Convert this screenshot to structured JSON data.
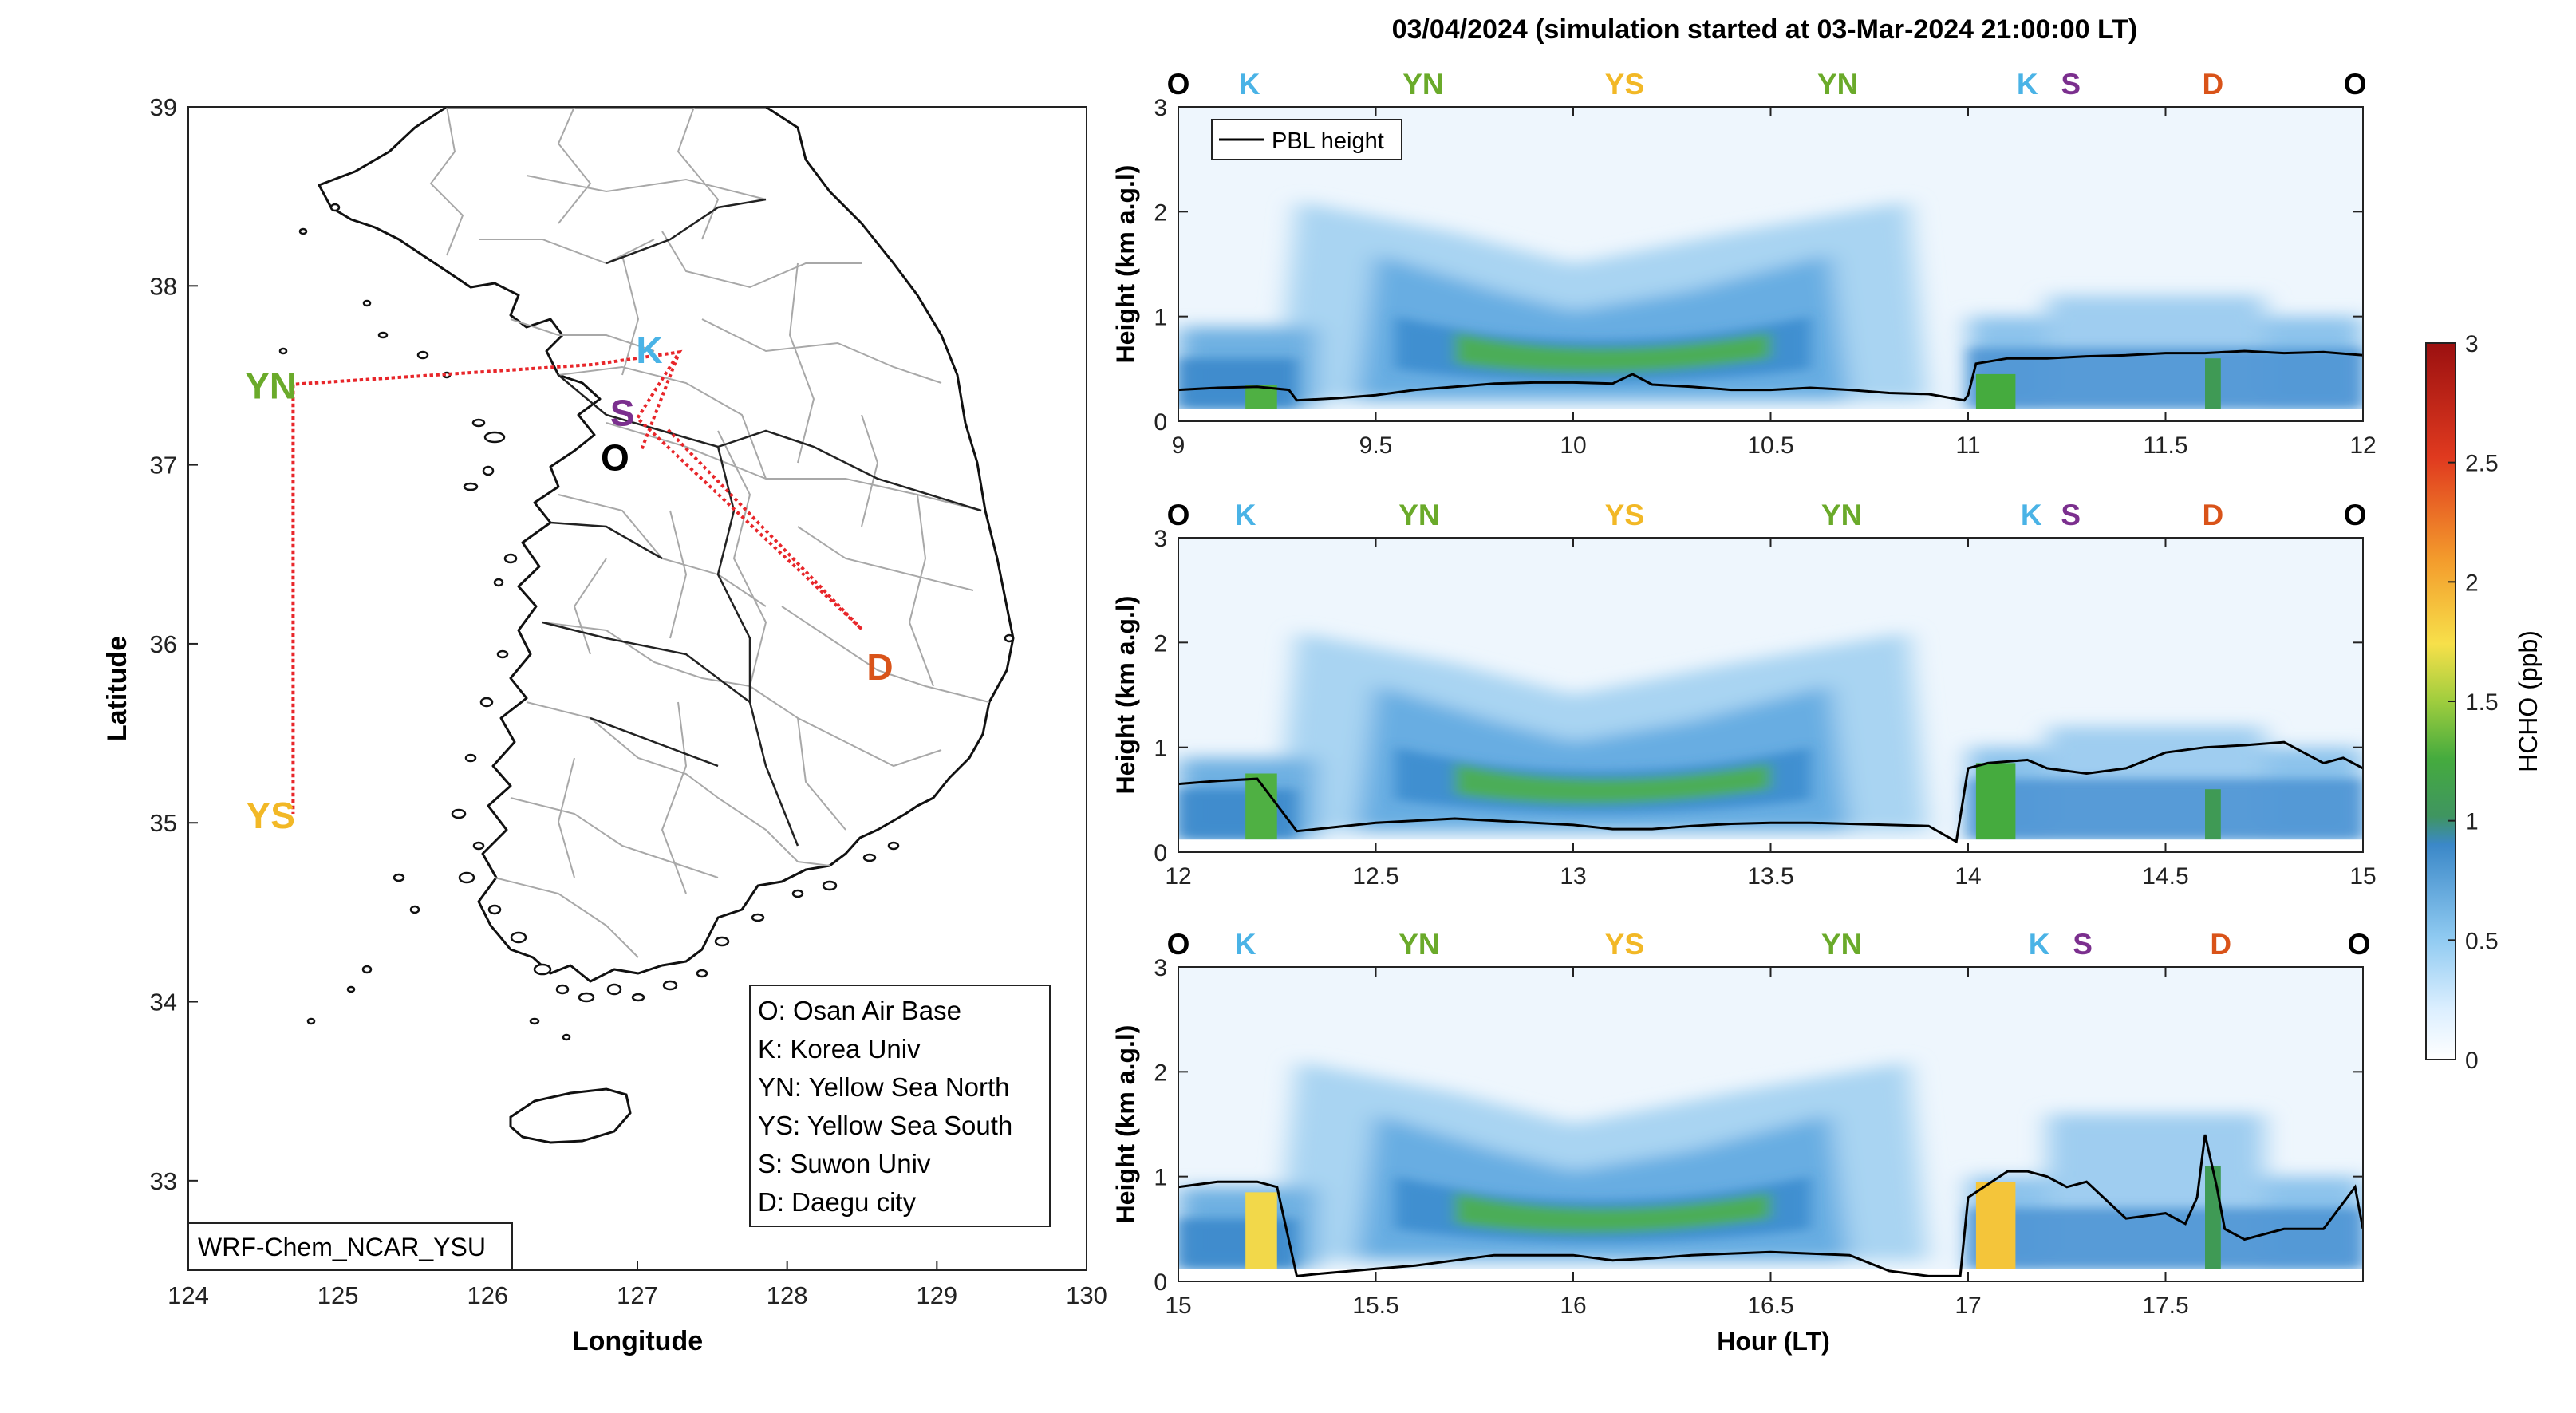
{
  "figure": {
    "title": "03/04/2024 (simulation started at 03-Mar-2024 21:00:00 LT)"
  },
  "map": {
    "xlabel": "Longitude",
    "ylabel": "Latitude",
    "xlim": [
      124,
      130
    ],
    "ylim": [
      32.5,
      39
    ],
    "xticks": [
      124,
      125,
      126,
      127,
      128,
      129,
      130
    ],
    "yticks": [
      33,
      34,
      35,
      36,
      37,
      38,
      39
    ],
    "model_label": "WRF-Chem_NCAR_YSU",
    "flight_track_color": "#e8262a",
    "track": [
      [
        127.03,
        37.09
      ],
      [
        127.28,
        37.63
      ],
      [
        126.7,
        37.56
      ],
      [
        124.7,
        37.45
      ],
      [
        124.7,
        35.05
      ],
      [
        124.7,
        37.45
      ],
      [
        126.7,
        37.56
      ],
      [
        127.28,
        37.63
      ],
      [
        127.0,
        37.26
      ],
      [
        128.5,
        36.08
      ],
      [
        127.2,
        37.2
      ]
    ],
    "sites": [
      {
        "code": "K",
        "lon": 127.08,
        "lat": 37.65,
        "color": "#4ab3e6"
      },
      {
        "code": "S",
        "lon": 126.9,
        "lat": 37.3,
        "color": "#7b2f8e"
      },
      {
        "code": "O",
        "lon": 126.85,
        "lat": 37.05,
        "color": "#000000"
      },
      {
        "code": "YN",
        "lon": 124.55,
        "lat": 37.45,
        "color": "#6aaa2a"
      },
      {
        "code": "YS",
        "lon": 124.55,
        "lat": 35.05,
        "color": "#f2b826"
      },
      {
        "code": "D",
        "lon": 128.62,
        "lat": 35.88,
        "color": "#d95319"
      }
    ],
    "legend": [
      "O: Osan Air Base",
      "K: Korea Univ",
      "YN: Yellow Sea North",
      "YS: Yellow Sea South",
      "S: Suwon Univ",
      "D: Daegu city"
    ]
  },
  "chart_data": {
    "type": "heatmap",
    "title": "03/04/2024 (simulation started at 03-Mar-2024 21:00:00 LT)",
    "variable": "HCHO (ppb)",
    "xlabel": "Hour (LT)",
    "ylabel": "Height (km a.g.l)",
    "colorbar": {
      "label": "HCHO (ppb)",
      "range": [
        0,
        3
      ],
      "ticks": [
        0,
        0.5,
        1,
        1.5,
        2,
        2.5,
        3
      ],
      "tick_labels": [
        "0",
        "0.5",
        "1",
        "1.5",
        "2",
        "2.5",
        "3"
      ]
    },
    "legend_entry": "PBL height",
    "site_marker_colors": {
      "O": "#000000",
      "K": "#4ab3e6",
      "YN": "#6aaa2a",
      "YS": "#f2b826",
      "S": "#7b2f8e",
      "D": "#d95319"
    },
    "panels": [
      {
        "xlim": [
          9,
          12
        ],
        "ylim": [
          0,
          3
        ],
        "xticks": [
          9,
          9.5,
          10,
          10.5,
          11,
          11.5,
          12
        ],
        "xtick_labels": [
          "9",
          "9.5",
          "10",
          "10.5",
          "11",
          "11.5",
          "12"
        ],
        "yticks": [
          0,
          1,
          2,
          3
        ],
        "ytick_labels": [
          "0",
          "1",
          "2",
          "3"
        ],
        "site_markers": [
          {
            "label": "O",
            "x": 9.0
          },
          {
            "label": "K",
            "x": 9.18
          },
          {
            "label": "YN",
            "x": 9.62
          },
          {
            "label": "YS",
            "x": 10.13
          },
          {
            "label": "YN",
            "x": 10.67
          },
          {
            "label": "K",
            "x": 11.15
          },
          {
            "label": "S",
            "x": 11.26
          },
          {
            "label": "D",
            "x": 11.62
          },
          {
            "label": "O",
            "x": 11.98
          }
        ],
        "pbl": {
          "x": [
            9.0,
            9.1,
            9.2,
            9.28,
            9.3,
            9.4,
            9.5,
            9.6,
            9.7,
            9.8,
            9.9,
            10.0,
            10.1,
            10.15,
            10.2,
            10.3,
            10.4,
            10.5,
            10.6,
            10.7,
            10.8,
            10.9,
            10.99,
            11.0,
            11.02,
            11.1,
            11.2,
            11.3,
            11.4,
            11.5,
            11.6,
            11.7,
            11.8,
            11.9,
            12.0
          ],
          "y": [
            0.3,
            0.32,
            0.33,
            0.3,
            0.2,
            0.22,
            0.25,
            0.3,
            0.33,
            0.36,
            0.37,
            0.37,
            0.36,
            0.45,
            0.35,
            0.33,
            0.3,
            0.3,
            0.32,
            0.3,
            0.27,
            0.26,
            0.2,
            0.25,
            0.55,
            0.6,
            0.6,
            0.62,
            0.63,
            0.65,
            0.65,
            0.67,
            0.65,
            0.66,
            0.63
          ]
        }
      },
      {
        "xlim": [
          12,
          15
        ],
        "ylim": [
          0,
          3
        ],
        "xticks": [
          12,
          12.5,
          13,
          13.5,
          14,
          14.5,
          15
        ],
        "xtick_labels": [
          "12",
          "12.5",
          "13",
          "13.5",
          "14",
          "14.5",
          "15"
        ],
        "yticks": [
          0,
          1,
          2,
          3
        ],
        "ytick_labels": [
          "0",
          "1",
          "2",
          "3"
        ],
        "site_markers": [
          {
            "label": "O",
            "x": 12.0
          },
          {
            "label": "K",
            "x": 12.17
          },
          {
            "label": "YN",
            "x": 12.61
          },
          {
            "label": "YS",
            "x": 13.13
          },
          {
            "label": "YN",
            "x": 13.68
          },
          {
            "label": "K",
            "x": 14.16
          },
          {
            "label": "S",
            "x": 14.26
          },
          {
            "label": "D",
            "x": 14.62
          },
          {
            "label": "O",
            "x": 14.98
          }
        ],
        "pbl": {
          "x": [
            12.0,
            12.1,
            12.2,
            12.3,
            12.35,
            12.5,
            12.6,
            12.7,
            12.8,
            12.9,
            13.0,
            13.1,
            13.2,
            13.3,
            13.4,
            13.5,
            13.6,
            13.7,
            13.8,
            13.9,
            13.97,
            14.0,
            14.05,
            14.15,
            14.2,
            14.3,
            14.4,
            14.5,
            14.6,
            14.7,
            14.8,
            14.9,
            14.95,
            15.0
          ],
          "y": [
            0.65,
            0.68,
            0.7,
            0.2,
            0.22,
            0.28,
            0.3,
            0.32,
            0.3,
            0.28,
            0.26,
            0.22,
            0.22,
            0.25,
            0.27,
            0.28,
            0.28,
            0.27,
            0.26,
            0.25,
            0.1,
            0.8,
            0.85,
            0.88,
            0.8,
            0.75,
            0.8,
            0.95,
            1.0,
            1.02,
            1.05,
            0.85,
            0.9,
            0.8
          ]
        }
      },
      {
        "xlim": [
          15,
          18
        ],
        "ylim": [
          0,
          3
        ],
        "xticks": [
          15,
          15.5,
          16,
          16.5,
          17,
          17.5
        ],
        "xtick_labels": [
          "15",
          "15.5",
          "16",
          "16.5",
          "17",
          "17.5"
        ],
        "yticks": [
          0,
          1,
          2,
          3
        ],
        "ytick_labels": [
          "0",
          "1",
          "2",
          "3"
        ],
        "site_markers": [
          {
            "label": "O",
            "x": 15.0
          },
          {
            "label": "K",
            "x": 15.17
          },
          {
            "label": "YN",
            "x": 15.61
          },
          {
            "label": "YS",
            "x": 16.13
          },
          {
            "label": "YN",
            "x": 16.68
          },
          {
            "label": "K",
            "x": 17.18
          },
          {
            "label": "S",
            "x": 17.29
          },
          {
            "label": "D",
            "x": 17.64
          },
          {
            "label": "O",
            "x": 17.99
          }
        ],
        "pbl": {
          "x": [
            15.0,
            15.1,
            15.2,
            15.25,
            15.3,
            15.35,
            15.5,
            15.6,
            15.8,
            16.0,
            16.1,
            16.2,
            16.3,
            16.5,
            16.7,
            16.8,
            16.9,
            16.98,
            17.0,
            17.1,
            17.15,
            17.2,
            17.25,
            17.3,
            17.4,
            17.5,
            17.55,
            17.58,
            17.6,
            17.63,
            17.65,
            17.7,
            17.8,
            17.9,
            17.98,
            18.0
          ],
          "y": [
            0.9,
            0.95,
            0.95,
            0.9,
            0.05,
            0.07,
            0.12,
            0.15,
            0.25,
            0.25,
            0.2,
            0.22,
            0.25,
            0.28,
            0.25,
            0.1,
            0.05,
            0.05,
            0.8,
            1.05,
            1.05,
            1.0,
            0.9,
            0.95,
            0.6,
            0.65,
            0.55,
            0.8,
            1.4,
            0.9,
            0.5,
            0.4,
            0.5,
            0.5,
            0.9,
            0.5
          ]
        }
      }
    ]
  }
}
